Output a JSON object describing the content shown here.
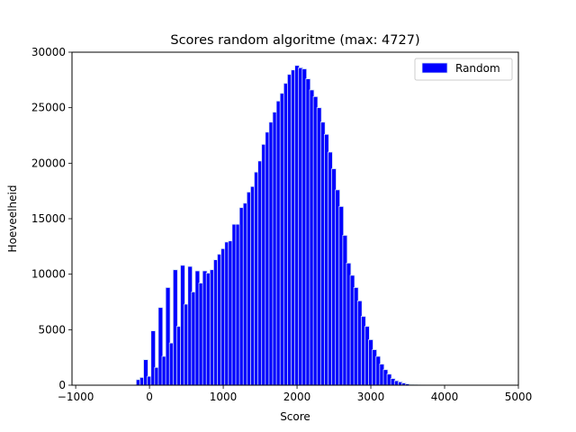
{
  "chart_data": {
    "type": "bar",
    "title": "Scores random algoritme (max: 4727)",
    "xlabel": "Score",
    "ylabel": "Hoeveelheid",
    "xlim": [
      -1050,
      5000
    ],
    "ylim": [
      0,
      30000
    ],
    "xticks": [
      -1000,
      0,
      1000,
      2000,
      3000,
      4000,
      5000
    ],
    "xtick_labels": [
      "−1000",
      "0",
      "1000",
      "2000",
      "3000",
      "4000",
      "5000"
    ],
    "yticks": [
      0,
      5000,
      10000,
      15000,
      20000,
      25000,
      30000
    ],
    "ytick_labels": [
      "0",
      "5000",
      "10000",
      "15000",
      "20000",
      "25000",
      "30000"
    ],
    "bar_width": 60,
    "bar_color": "#0000ff",
    "edge_color": "#d8e6f0",
    "legend": {
      "label": "Random",
      "location": "upper right"
    },
    "series": [
      {
        "name": "Random",
        "x": [
          -150,
          -100,
          -50,
          0,
          50,
          100,
          150,
          200,
          250,
          300,
          350,
          400,
          450,
          500,
          550,
          600,
          650,
          700,
          750,
          800,
          850,
          900,
          950,
          1000,
          1050,
          1100,
          1150,
          1200,
          1250,
          1300,
          1350,
          1400,
          1450,
          1500,
          1550,
          1600,
          1650,
          1700,
          1750,
          1800,
          1850,
          1900,
          1950,
          2000,
          2050,
          2100,
          2150,
          2200,
          2250,
          2300,
          2350,
          2400,
          2450,
          2500,
          2550,
          2600,
          2650,
          2700,
          2750,
          2800,
          2850,
          2900,
          2950,
          3000,
          3050,
          3100,
          3150,
          3200,
          3250,
          3300,
          3350,
          3400,
          3450,
          3500,
          3550,
          3600,
          3650,
          3700,
          3750,
          3800,
          3850,
          3900,
          3950,
          4000,
          4050,
          4100,
          4150
        ],
        "values": [
          500,
          700,
          2300,
          800,
          4900,
          1600,
          7000,
          2600,
          8800,
          3800,
          10400,
          5300,
          10800,
          7300,
          10700,
          8400,
          10300,
          9200,
          10300,
          10100,
          10400,
          11300,
          11800,
          12300,
          12900,
          13000,
          14500,
          14500,
          16000,
          16400,
          17400,
          17900,
          19200,
          20200,
          21700,
          22800,
          23700,
          24600,
          25600,
          26300,
          27200,
          28000,
          28400,
          28800,
          28600,
          28500,
          27600,
          26600,
          26000,
          25000,
          23700,
          22600,
          21000,
          19500,
          17600,
          16100,
          13500,
          11000,
          9900,
          8800,
          7600,
          6200,
          5300,
          4100,
          3200,
          2600,
          1900,
          1400,
          1000,
          600,
          400,
          300,
          200,
          120,
          70,
          40,
          20,
          10,
          5,
          3,
          2,
          1,
          0,
          0,
          0,
          0,
          0
        ]
      }
    ]
  }
}
